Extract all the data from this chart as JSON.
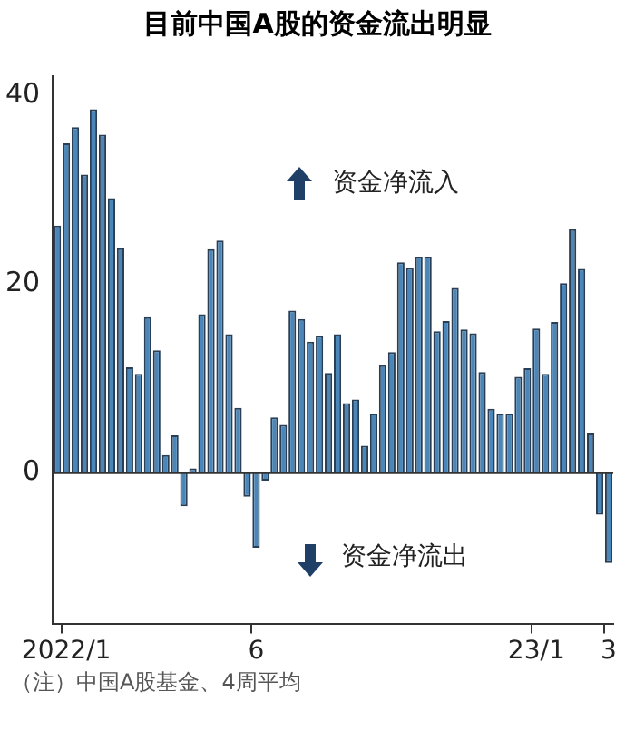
{
  "chart_data": {
    "type": "bar",
    "title": "目前中国A股的资金流出明显",
    "categories": [
      null,
      "2022/1",
      null,
      null,
      null,
      null,
      null,
      null,
      null,
      null,
      null,
      null,
      null,
      null,
      null,
      null,
      null,
      null,
      null,
      null,
      null,
      null,
      "6",
      null,
      null,
      null,
      null,
      null,
      null,
      null,
      null,
      null,
      null,
      null,
      null,
      null,
      null,
      null,
      null,
      null,
      null,
      null,
      null,
      null,
      null,
      null,
      null,
      null,
      null,
      null,
      null,
      null,
      null,
      "23/1",
      null,
      null,
      null,
      null,
      null,
      null,
      null,
      "3"
    ],
    "values": [
      26.2,
      34.9,
      36.6,
      31.6,
      38.5,
      35.8,
      29.1,
      23.8,
      11.2,
      10.5,
      16.5,
      13.0,
      1.9,
      4.0,
      -3.5,
      0.5,
      16.8,
      23.7,
      24.6,
      14.7,
      6.9,
      -2.5,
      -7.9,
      -0.8,
      5.9,
      5.1,
      17.2,
      16.3,
      13.9,
      14.5,
      10.6,
      14.7,
      7.4,
      7.8,
      2.9,
      6.3,
      11.4,
      12.8,
      22.3,
      21.7,
      22.9,
      22.9,
      15.0,
      16.1,
      19.6,
      15.2,
      14.8,
      10.7,
      6.8,
      6.3,
      6.3,
      10.2,
      11.1,
      15.3,
      10.5,
      16.0,
      20.1,
      25.8,
      21.6,
      4.2,
      -4.4,
      -9.5
    ],
    "color": "#4a86b8",
    "ylim": [
      -16,
      42
    ],
    "yticks": [
      0,
      20,
      40
    ],
    "grid": false,
    "ref_lines": [
      {
        "axis": "y",
        "value": 0
      }
    ],
    "annotations": [
      "资金净流入",
      "资金净流出",
      "（注）中国A股基金、4周平均"
    ]
  }
}
